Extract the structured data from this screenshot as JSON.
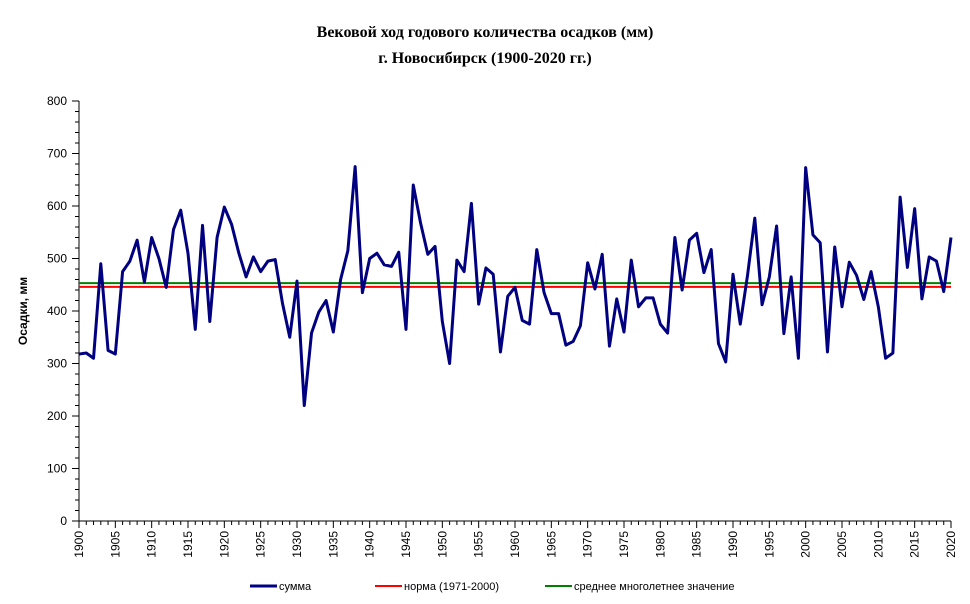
{
  "chart_data": {
    "type": "line",
    "title_line1": "Вековой ход годового количества осадков (мм)",
    "title_line2": "г. Новосибирск (1900-2020 гг.)",
    "xlabel": "",
    "ylabel": "Осадки, мм",
    "xlim": [
      1900,
      2020
    ],
    "ylim": [
      0,
      800
    ],
    "y_ticks": [
      0,
      100,
      200,
      300,
      400,
      500,
      600,
      700,
      800
    ],
    "x_ticks": [
      1900,
      1905,
      1910,
      1915,
      1920,
      1925,
      1930,
      1935,
      1940,
      1945,
      1950,
      1955,
      1960,
      1965,
      1970,
      1975,
      1980,
      1985,
      1990,
      1995,
      2000,
      2005,
      2010,
      2015,
      2020
    ],
    "legend_position": "bottom",
    "series": [
      {
        "name": "сумма",
        "color": "#000080",
        "x_start": 1900,
        "x_end": 2020,
        "values": [
          318,
          320,
          310,
          490,
          325,
          318,
          475,
          495,
          535,
          455,
          540,
          500,
          445,
          555,
          592,
          510,
          365,
          563,
          380,
          540,
          598,
          565,
          510,
          465,
          503,
          475,
          495,
          498,
          415,
          350,
          457,
          220,
          358,
          398,
          420,
          360,
          460,
          515,
          675,
          435,
          500,
          510,
          488,
          485,
          512,
          365,
          640,
          568,
          508,
          523,
          380,
          300,
          497,
          475,
          605,
          413,
          482,
          470,
          322,
          428,
          445,
          382,
          375,
          517,
          435,
          395,
          395,
          335,
          342,
          372,
          492,
          442,
          508,
          333,
          423,
          360,
          497,
          408,
          425,
          425,
          375,
          358,
          540,
          440,
          535,
          548,
          473,
          517,
          338,
          303,
          470,
          375,
          468,
          577,
          412,
          465,
          562,
          357,
          465,
          310,
          673,
          545,
          530,
          322,
          522,
          408,
          493,
          468,
          422,
          475,
          408,
          310,
          320,
          617,
          483,
          595,
          423,
          503,
          495,
          437,
          540
        ]
      },
      {
        "name": "норма (1971-2000)",
        "color": "#ff0000",
        "constant": 446
      },
      {
        "name": "среднее многолетнее значение",
        "color": "#008000",
        "constant": 453
      }
    ]
  }
}
